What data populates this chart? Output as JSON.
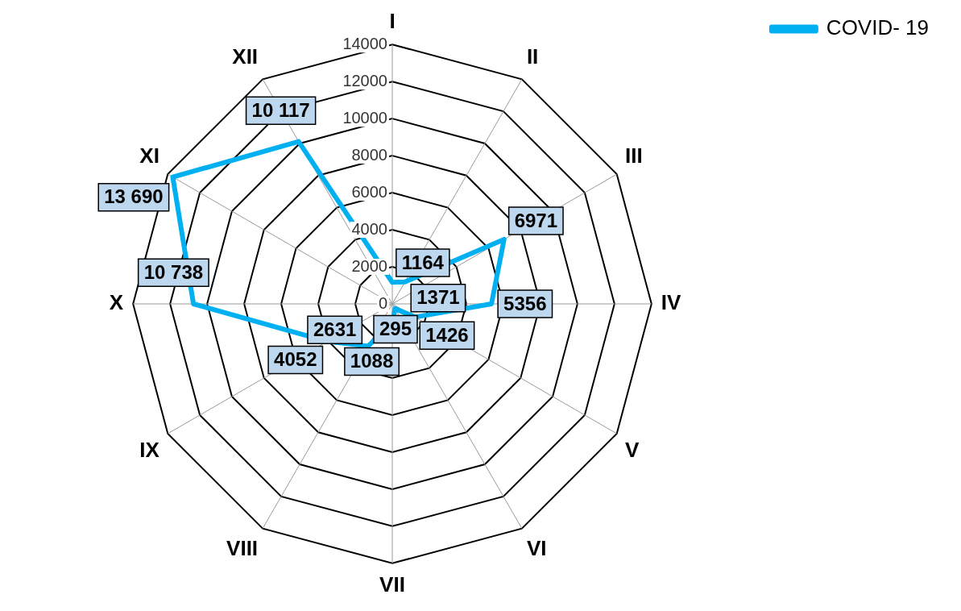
{
  "chart_data": {
    "type": "radar",
    "categories": [
      "I",
      "II",
      "III",
      "IV",
      "V",
      "VI",
      "VII",
      "VIII",
      "IX",
      "X",
      "XI",
      "XII"
    ],
    "series": [
      {
        "name": "COVID- 19",
        "color": "#00b0f0",
        "values": [
          1164,
          1371,
          6971,
          5356,
          1426,
          295,
          1088,
          2631,
          4052,
          10738,
          13690,
          10117
        ],
        "value_labels": [
          "1164",
          "1371",
          "6971",
          "5356",
          "1426",
          "295",
          "1088",
          "2631",
          "4052",
          "10 738",
          "13 690",
          "10 117"
        ]
      }
    ],
    "ylim": [
      0,
      14000
    ],
    "yticks": [
      0,
      2000,
      4000,
      6000,
      8000,
      10000,
      12000,
      14000
    ],
    "grid": true,
    "legend": "top right",
    "marker": "none",
    "line_style": "solid"
  }
}
